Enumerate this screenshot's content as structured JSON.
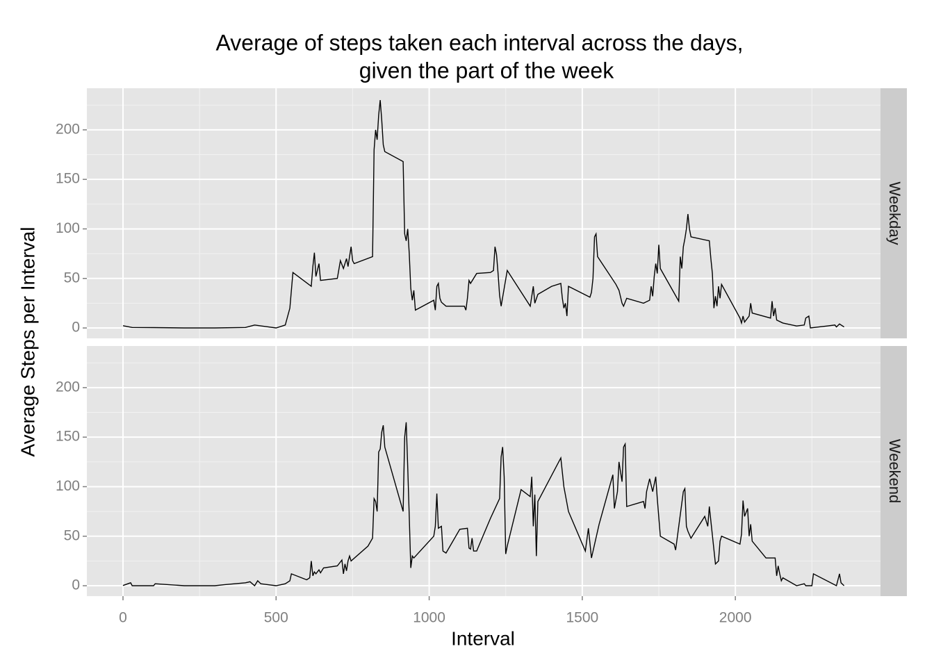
{
  "chart_data": {
    "type": "line",
    "title": [
      "Average of steps taken each interval across the days,",
      "given the part of the week"
    ],
    "x_label": "Interval",
    "y_label": "Average Steps per Interval",
    "xlim": [
      -118,
      2474
    ],
    "xticks": [
      0,
      500,
      1000,
      1500,
      2000
    ],
    "xminor": [
      250,
      750,
      1250,
      1750,
      2250
    ],
    "ylim": [
      -10.5,
      242
    ],
    "yticks": [
      0,
      50,
      100,
      150,
      200
    ],
    "yminor": [
      25,
      75,
      125,
      175,
      225
    ],
    "grid": true,
    "series": [
      {
        "name": "Weekday",
        "color": "#000000",
        "x": [
          0,
          30,
          100,
          200,
          300,
          400,
          430,
          500,
          530,
          545,
          555,
          615,
          620,
          625,
          630,
          640,
          645,
          700,
          710,
          720,
          730,
          735,
          745,
          750,
          755,
          815,
          820,
          825,
          830,
          835,
          840,
          845,
          850,
          855,
          915,
          920,
          925,
          930,
          935,
          940,
          945,
          950,
          955,
          1015,
          1020,
          1025,
          1030,
          1035,
          1040,
          1055,
          1115,
          1120,
          1125,
          1130,
          1135,
          1155,
          1200,
          1210,
          1215,
          1220,
          1225,
          1230,
          1235,
          1255,
          1330,
          1335,
          1340,
          1345,
          1355,
          1400,
          1430,
          1435,
          1440,
          1445,
          1450,
          1455,
          1525,
          1530,
          1535,
          1540,
          1545,
          1550,
          1610,
          1620,
          1630,
          1635,
          1645,
          1700,
          1720,
          1725,
          1730,
          1735,
          1740,
          1745,
          1750,
          1755,
          1815,
          1820,
          1825,
          1830,
          1835,
          1840,
          1845,
          1850,
          1855,
          1915,
          1920,
          1925,
          1930,
          1935,
          1940,
          1945,
          1950,
          1955,
          2015,
          2020,
          2025,
          2030,
          2045,
          2050,
          2055,
          2115,
          2120,
          2125,
          2130,
          2135,
          2155,
          2200,
          2225,
          2230,
          2240,
          2245,
          2300,
          2325,
          2330,
          2340,
          2355
        ],
        "values": [
          2.3,
          0.5,
          0.4,
          0,
          0,
          0.5,
          3,
          0,
          3,
          20,
          56,
          42,
          62,
          76,
          52,
          65,
          48,
          50,
          68,
          60,
          70,
          62,
          82,
          68,
          65,
          72,
          180,
          200,
          190,
          215,
          230,
          210,
          185,
          178,
          168,
          95,
          88,
          100,
          75,
          40,
          28,
          38,
          18,
          28,
          18,
          42,
          45,
          30,
          26,
          22,
          22,
          18,
          30,
          48,
          45,
          55,
          56,
          58,
          82,
          74,
          55,
          33,
          22,
          58,
          22,
          32,
          42,
          25,
          34,
          42,
          45,
          30,
          20,
          25,
          12,
          42,
          31,
          36,
          50,
          92,
          95,
          72,
          44,
          38,
          25,
          22,
          30,
          25,
          28,
          42,
          32,
          52,
          65,
          55,
          84,
          60,
          27,
          72,
          60,
          82,
          90,
          100,
          115,
          100,
          92,
          88,
          70,
          55,
          20,
          32,
          22,
          42,
          30,
          44,
          10,
          5,
          12,
          6,
          12,
          25,
          15,
          10,
          27,
          12,
          20,
          8,
          5,
          2,
          3,
          10,
          12,
          0,
          2,
          3,
          1,
          4,
          1
        ]
      },
      {
        "name": "Weekend",
        "color": "#000000",
        "x": [
          0,
          25,
          30,
          100,
          105,
          200,
          300,
          330,
          400,
          415,
          430,
          440,
          450,
          500,
          530,
          545,
          550,
          600,
          610,
          615,
          620,
          625,
          630,
          640,
          645,
          655,
          700,
          715,
          720,
          725,
          730,
          735,
          740,
          745,
          800,
          815,
          820,
          825,
          830,
          835,
          840,
          845,
          850,
          855,
          915,
          920,
          925,
          930,
          935,
          940,
          945,
          950,
          1015,
          1020,
          1025,
          1030,
          1040,
          1045,
          1055,
          1100,
          1125,
          1130,
          1135,
          1140,
          1145,
          1155,
          1200,
          1230,
          1235,
          1240,
          1245,
          1250,
          1255,
          1300,
          1330,
          1335,
          1340,
          1345,
          1350,
          1355,
          1430,
          1440,
          1455,
          1510,
          1520,
          1530,
          1555,
          1600,
          1605,
          1615,
          1620,
          1630,
          1635,
          1640,
          1645,
          1700,
          1705,
          1710,
          1720,
          1730,
          1740,
          1745,
          1755,
          1800,
          1805,
          1830,
          1835,
          1840,
          1845,
          1855,
          1900,
          1910,
          1915,
          1935,
          1945,
          1950,
          1955,
          2015,
          2020,
          2025,
          2030,
          2040,
          2045,
          2050,
          2055,
          2100,
          2130,
          2135,
          2140,
          2145,
          2150,
          2155,
          2200,
          2225,
          2230,
          2250,
          2255,
          2330,
          2340,
          2345,
          2355
        ],
        "values": [
          0.2,
          3,
          0,
          0,
          2,
          0,
          0,
          1,
          3,
          4,
          0,
          5,
          2,
          0,
          2,
          5,
          12,
          6,
          8,
          25,
          10,
          14,
          12,
          16,
          13,
          18,
          20,
          26,
          12,
          22,
          15,
          25,
          30,
          25,
          40,
          48,
          88,
          85,
          75,
          135,
          138,
          155,
          162,
          140,
          75,
          150,
          165,
          120,
          70,
          18,
          30,
          28,
          50,
          60,
          93,
          58,
          60,
          35,
          33,
          57,
          58,
          38,
          37,
          48,
          35,
          35,
          68,
          88,
          130,
          140,
          110,
          32,
          40,
          97,
          90,
          110,
          60,
          92,
          30,
          85,
          129,
          100,
          75,
          35,
          58,
          28,
          62,
          112,
          78,
          95,
          125,
          105,
          140,
          143,
          80,
          85,
          78,
          95,
          108,
          95,
          110,
          88,
          50,
          42,
          36,
          95,
          98,
          60,
          55,
          48,
          70,
          60,
          80,
          22,
          25,
          45,
          50,
          42,
          52,
          86,
          70,
          78,
          50,
          62,
          45,
          28,
          28,
          10,
          20,
          12,
          5,
          8,
          0,
          2,
          0,
          0,
          12,
          0,
          12,
          3,
          0
        ]
      }
    ]
  }
}
